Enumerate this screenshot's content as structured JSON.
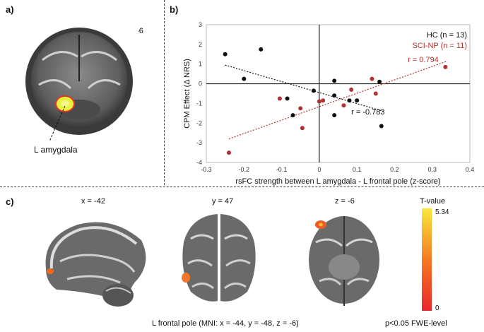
{
  "panel_a": {
    "label": "a)",
    "slice": "y = -6",
    "annotation": "L amygdala"
  },
  "panel_b": {
    "label": "b)"
  },
  "panel_c": {
    "label": "c)",
    "slices": [
      "x = -42",
      "y = 47",
      "z = -6"
    ],
    "colorbar": {
      "title": "T-value",
      "max_label": "5.34",
      "min_label": "0",
      "colors": [
        "#e8262a",
        "#f47a22",
        "#f7e83a"
      ]
    },
    "caption": "L frontal pole (MNI: x = -44, y = -48, z = -6)",
    "threshold": "p<0.05 FWE-level"
  },
  "chart_data": {
    "type": "scatter",
    "xlabel": "rsFC strength between L amygdala - L frontal pole (z-score)",
    "ylabel": "CPM Effect (Δ NRS)",
    "xlim": [
      -0.3,
      0.4
    ],
    "ylim": [
      -4,
      3
    ],
    "xticks": [
      -0.3,
      -0.2,
      -0.1,
      0,
      0.1,
      0.2,
      0.3,
      0.4
    ],
    "yticks": [
      -4,
      -3,
      -2,
      -1,
      0,
      1,
      2,
      3
    ],
    "grid": false,
    "legend_position": "top-right",
    "series": [
      {
        "name": "HC (n = 13)",
        "color": "#111111",
        "r_label": "r = -0.783",
        "trend": [
          [
            -0.25,
            0.95
          ],
          [
            0.17,
            -1.4
          ]
        ],
        "points": [
          [
            -0.25,
            1.5
          ],
          [
            -0.155,
            1.75
          ],
          [
            -0.2,
            0.25
          ],
          [
            -0.085,
            -0.75
          ],
          [
            -0.07,
            -1.6
          ],
          [
            -0.015,
            -0.35
          ],
          [
            0.04,
            0.15
          ],
          [
            0.04,
            -0.6
          ],
          [
            0.04,
            -1.6
          ],
          [
            0.08,
            -0.85
          ],
          [
            0.1,
            -0.85
          ],
          [
            0.16,
            0.1
          ],
          [
            0.165,
            -2.15
          ]
        ]
      },
      {
        "name": "SCI-NP (n = 11)",
        "color": "#b2312e",
        "r_label": "r = 0.794",
        "trend": [
          [
            -0.24,
            -2.8
          ],
          [
            0.34,
            1.15
          ]
        ],
        "points": [
          [
            -0.24,
            -3.5
          ],
          [
            -0.105,
            -0.75
          ],
          [
            -0.05,
            -1.25
          ],
          [
            -0.045,
            -2.25
          ],
          [
            0.0,
            -0.9
          ],
          [
            0.01,
            -0.85
          ],
          [
            0.065,
            -1.1
          ],
          [
            0.085,
            -0.3
          ],
          [
            0.14,
            0.25
          ],
          [
            0.15,
            -0.5
          ],
          [
            0.335,
            0.85
          ]
        ]
      }
    ]
  }
}
